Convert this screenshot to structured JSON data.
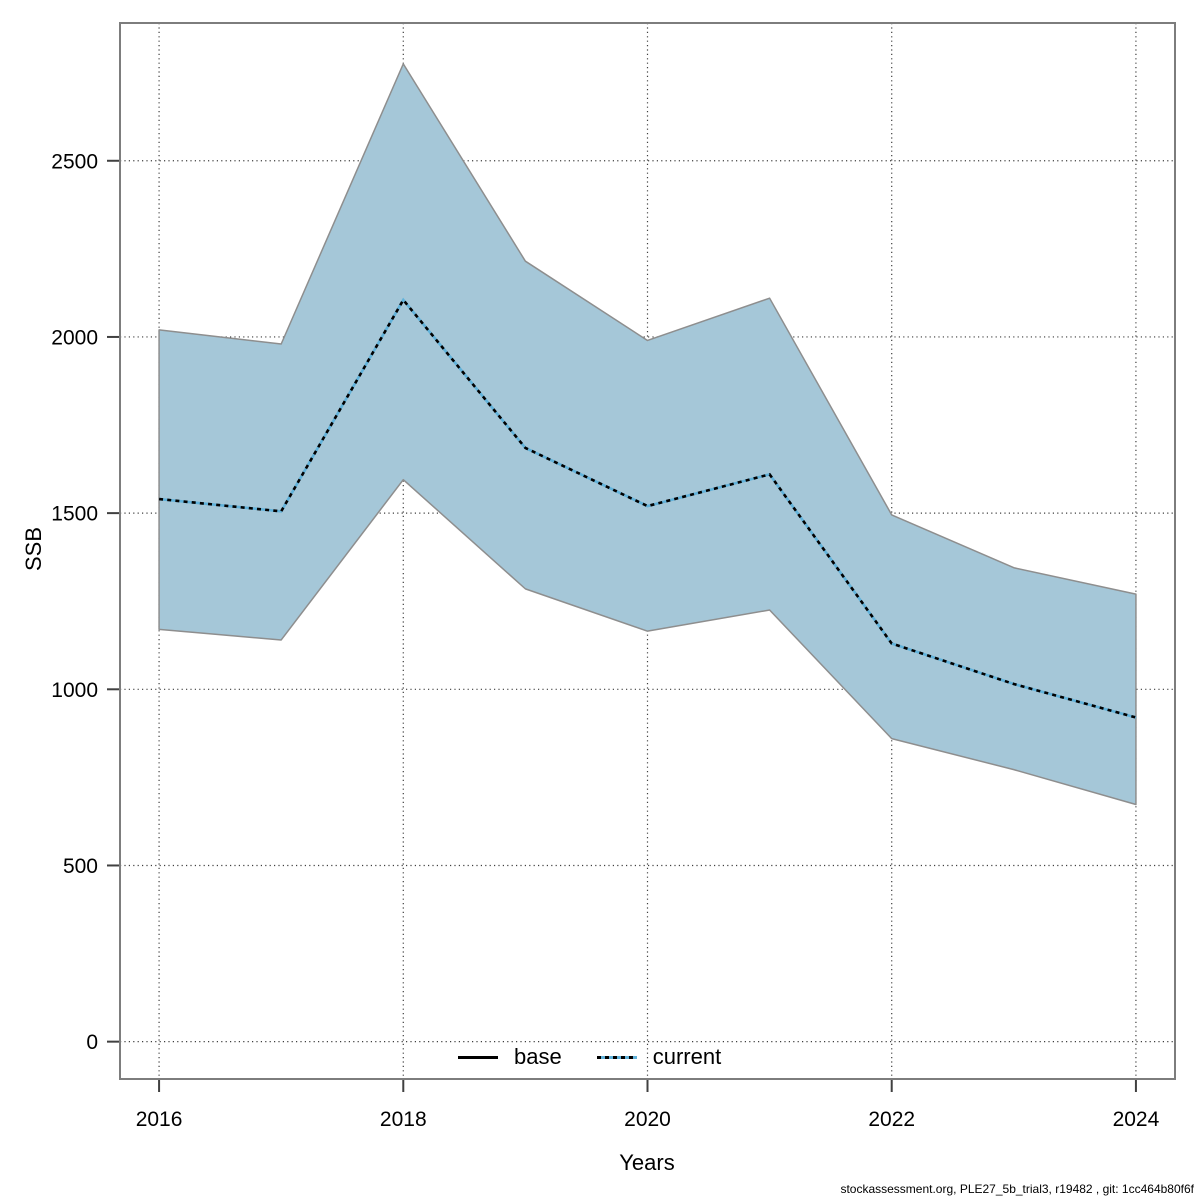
{
  "footer": {
    "text": "stockassessment.org, PLE27_5b_trial3, r19482 , git: 1cc464b80f6f"
  },
  "chart_data": {
    "type": "line",
    "title": "",
    "xlabel": "Years",
    "ylabel": "SSB",
    "x": [
      2016,
      2017,
      2018,
      2019,
      2020,
      2021,
      2022,
      2023,
      2024
    ],
    "series": [
      {
        "name": "current",
        "line_style": "dotted",
        "values": [
          1540,
          1505,
          2105,
          1685,
          1520,
          1610,
          1130,
          1015,
          920
        ]
      }
    ],
    "band": {
      "name": "confidence-interval",
      "upper": [
        2020,
        1980,
        2775,
        2215,
        1990,
        2110,
        1495,
        1345,
        1270
      ],
      "lower": [
        1170,
        1140,
        1595,
        1285,
        1165,
        1225,
        860,
        772,
        673
      ]
    },
    "legend": [
      {
        "label": "base",
        "style": "solid"
      },
      {
        "label": "current",
        "style": "dotted"
      }
    ],
    "legend_position": "bottom-center",
    "grid": true,
    "x_ticks": [
      2016,
      2018,
      2020,
      2022,
      2024
    ],
    "y_ticks": [
      0,
      500,
      1000,
      1500,
      2000,
      2500
    ],
    "xlim": [
      2015.68,
      2024.32
    ],
    "ylim": [
      -106,
      2891
    ],
    "colors": {
      "band_fill": "#a5c7d8",
      "band_edge": "#8e8e8e",
      "line_blue": "#61b2da",
      "line_black": "#000000",
      "grid": "#3f3f3f",
      "axis_box": "#7d7d7d"
    }
  }
}
